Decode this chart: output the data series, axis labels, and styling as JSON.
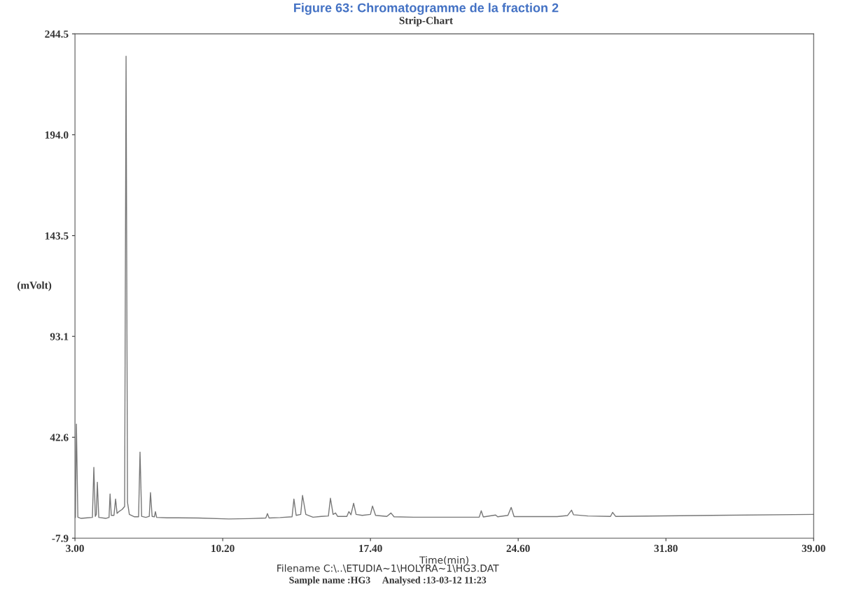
{
  "chart_data": {
    "type": "line",
    "title": "Figure 63: Chromatogramme de la fraction 2",
    "subtitle": "Strip-Chart",
    "xlabel": "Time(min)",
    "ylabel": "(mVolt)",
    "annotations": [
      "Filename C:\\..\\ETUDIA~1\\HOLYRA~1\\HG3.DAT",
      "Sample name :HG3     Analysed :13-03-12 11:23"
    ],
    "x": [
      3.0,
      3.02,
      3.07,
      3.14,
      3.3,
      3.6,
      3.85,
      3.92,
      3.99,
      4.04,
      4.09,
      4.16,
      4.5,
      4.66,
      4.71,
      4.77,
      4.9,
      4.98,
      5.05,
      5.15,
      5.3,
      5.42,
      5.49,
      5.56,
      5.65,
      5.9,
      6.1,
      6.17,
      6.25,
      6.45,
      6.62,
      6.68,
      6.76,
      6.87,
      6.92,
      6.98,
      7.5,
      9.0,
      10.5,
      11.5,
      12.3,
      12.38,
      12.46,
      13.0,
      13.58,
      13.67,
      13.78,
      14.0,
      14.09,
      14.25,
      14.6,
      15.0,
      15.35,
      15.45,
      15.58,
      15.7,
      15.8,
      16.25,
      16.35,
      16.45,
      16.58,
      16.7,
      17.0,
      17.4,
      17.5,
      17.65,
      18.2,
      18.4,
      18.55,
      19.5,
      22.7,
      22.8,
      22.9,
      23.5,
      23.6,
      24.1,
      24.26,
      24.4,
      26.5,
      27.0,
      27.2,
      27.3,
      28.0,
      29.1,
      29.2,
      29.35,
      39.0
    ],
    "series": [
      {
        "color": "#777777",
        "values": [
          2.3,
          2.5,
          49.2,
          2.6,
          2.0,
          2.3,
          2.5,
          27.5,
          3.0,
          4.0,
          20.1,
          2.5,
          2.0,
          2.5,
          14.2,
          3.5,
          3.5,
          11.7,
          4.5,
          5.5,
          6.5,
          8.0,
          233.3,
          10.0,
          4.0,
          2.8,
          2.8,
          35.2,
          3.0,
          2.5,
          3.0,
          14.9,
          3.0,
          2.8,
          5.4,
          2.5,
          2.3,
          2.2,
          1.7,
          1.9,
          2.2,
          4.4,
          2.2,
          2.4,
          2.8,
          11.7,
          3.5,
          4.0,
          13.5,
          4.0,
          2.6,
          3.0,
          3.2,
          12.1,
          4.0,
          4.7,
          3.0,
          3.0,
          5.4,
          3.8,
          9.6,
          4.0,
          3.5,
          4.0,
          8.2,
          3.5,
          3.0,
          4.7,
          2.8,
          2.6,
          2.6,
          5.8,
          2.7,
          3.7,
          2.8,
          3.5,
          7.5,
          2.9,
          2.9,
          3.4,
          6.1,
          3.8,
          3.2,
          3.0,
          5.0,
          3.0,
          4.0
        ]
      }
    ],
    "xlim": [
      3.0,
      39.0
    ],
    "ylim": [
      -7.9,
      244.5
    ],
    "xticks": [
      {
        "value": 3.0,
        "label": "3.00"
      },
      {
        "value": 10.2,
        "label": "10.20"
      },
      {
        "value": 17.4,
        "label": "17.40"
      },
      {
        "value": 24.6,
        "label": "24.60"
      },
      {
        "value": 31.8,
        "label": "31.80"
      },
      {
        "value": 39.0,
        "label": "39.00"
      }
    ],
    "yticks": [
      -7.9,
      42.6,
      93.1,
      143.5,
      {
        "value": 194.0,
        "label": "194.0"
      },
      244.5
    ],
    "grid": false,
    "marker": "none",
    "line_style": "solid"
  }
}
